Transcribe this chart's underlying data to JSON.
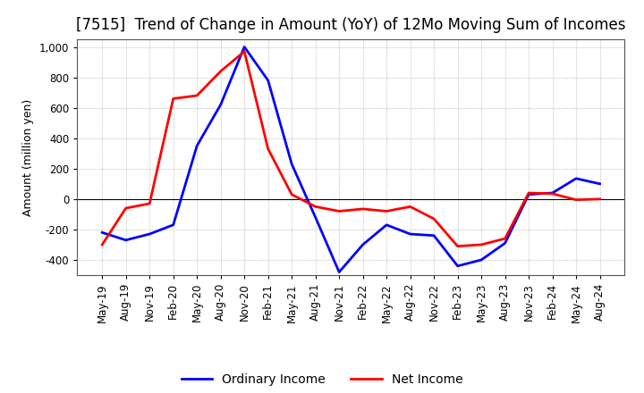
{
  "title": "[7515]  Trend of Change in Amount (YoY) of 12Mo Moving Sum of Incomes",
  "ylabel": "Amount (million yen)",
  "ylim": [
    -500,
    1050
  ],
  "yticks": [
    -400,
    -200,
    0,
    200,
    400,
    600,
    800,
    1000
  ],
  "background_color": "#ffffff",
  "plot_bg_color": "#ffffff",
  "grid_color": "#aaaaaa",
  "x_labels": [
    "May-19",
    "Aug-19",
    "Nov-19",
    "Feb-20",
    "May-20",
    "Aug-20",
    "Nov-20",
    "Feb-21",
    "May-21",
    "Aug-21",
    "Nov-21",
    "Feb-22",
    "May-22",
    "Aug-22",
    "Nov-22",
    "Feb-23",
    "May-23",
    "Aug-23",
    "Nov-23",
    "Feb-24",
    "May-24",
    "Aug-24"
  ],
  "ordinary_income": [
    -220,
    -270,
    -230,
    -170,
    350,
    620,
    1000,
    780,
    230,
    -120,
    -480,
    -300,
    -170,
    -230,
    -240,
    -440,
    -400,
    -290,
    30,
    40,
    135,
    100
  ],
  "net_income": [
    -300,
    -60,
    -30,
    660,
    680,
    840,
    970,
    330,
    30,
    -50,
    -80,
    -65,
    -80,
    -50,
    -130,
    -310,
    -300,
    -260,
    40,
    35,
    -5,
    0
  ],
  "ordinary_color": "#0000ff",
  "net_color": "#ff0000",
  "title_fontsize": 12,
  "axis_fontsize": 9,
  "tick_fontsize": 8.5,
  "legend_fontsize": 10,
  "linewidth": 2.0
}
